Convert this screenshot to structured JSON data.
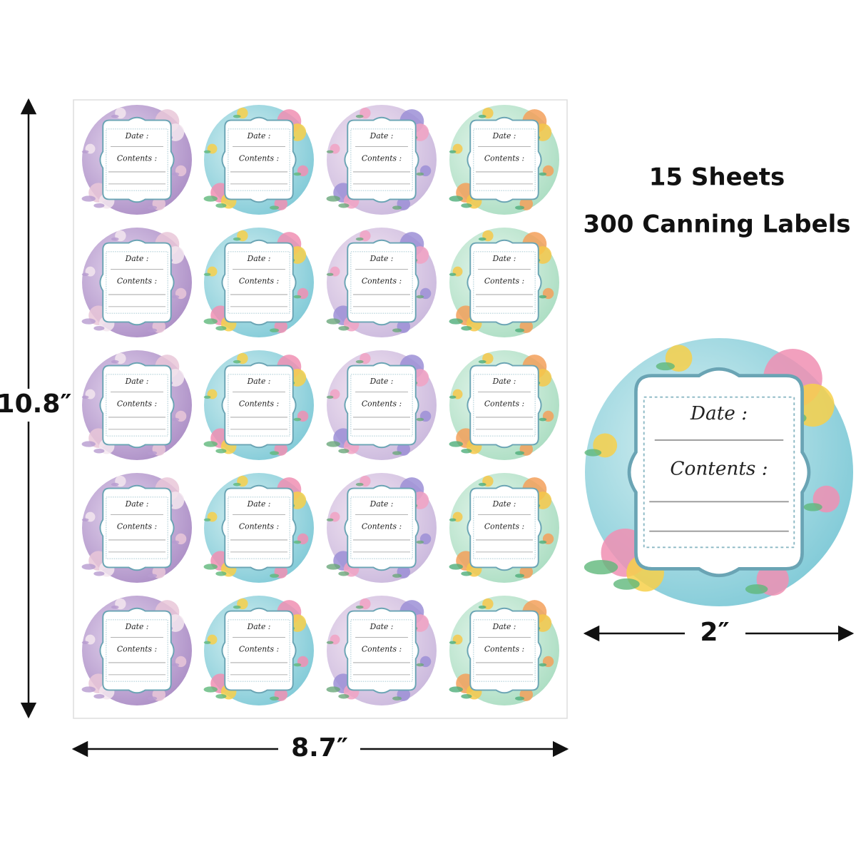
{
  "dimensions": {
    "height": "10.8″",
    "width": "8.7″",
    "label_diameter": "2″"
  },
  "headline": {
    "sheets": "15 Sheets",
    "labels": "300 Canning Labels"
  },
  "label": {
    "date": "Date :",
    "contents": "Contents :"
  }
}
